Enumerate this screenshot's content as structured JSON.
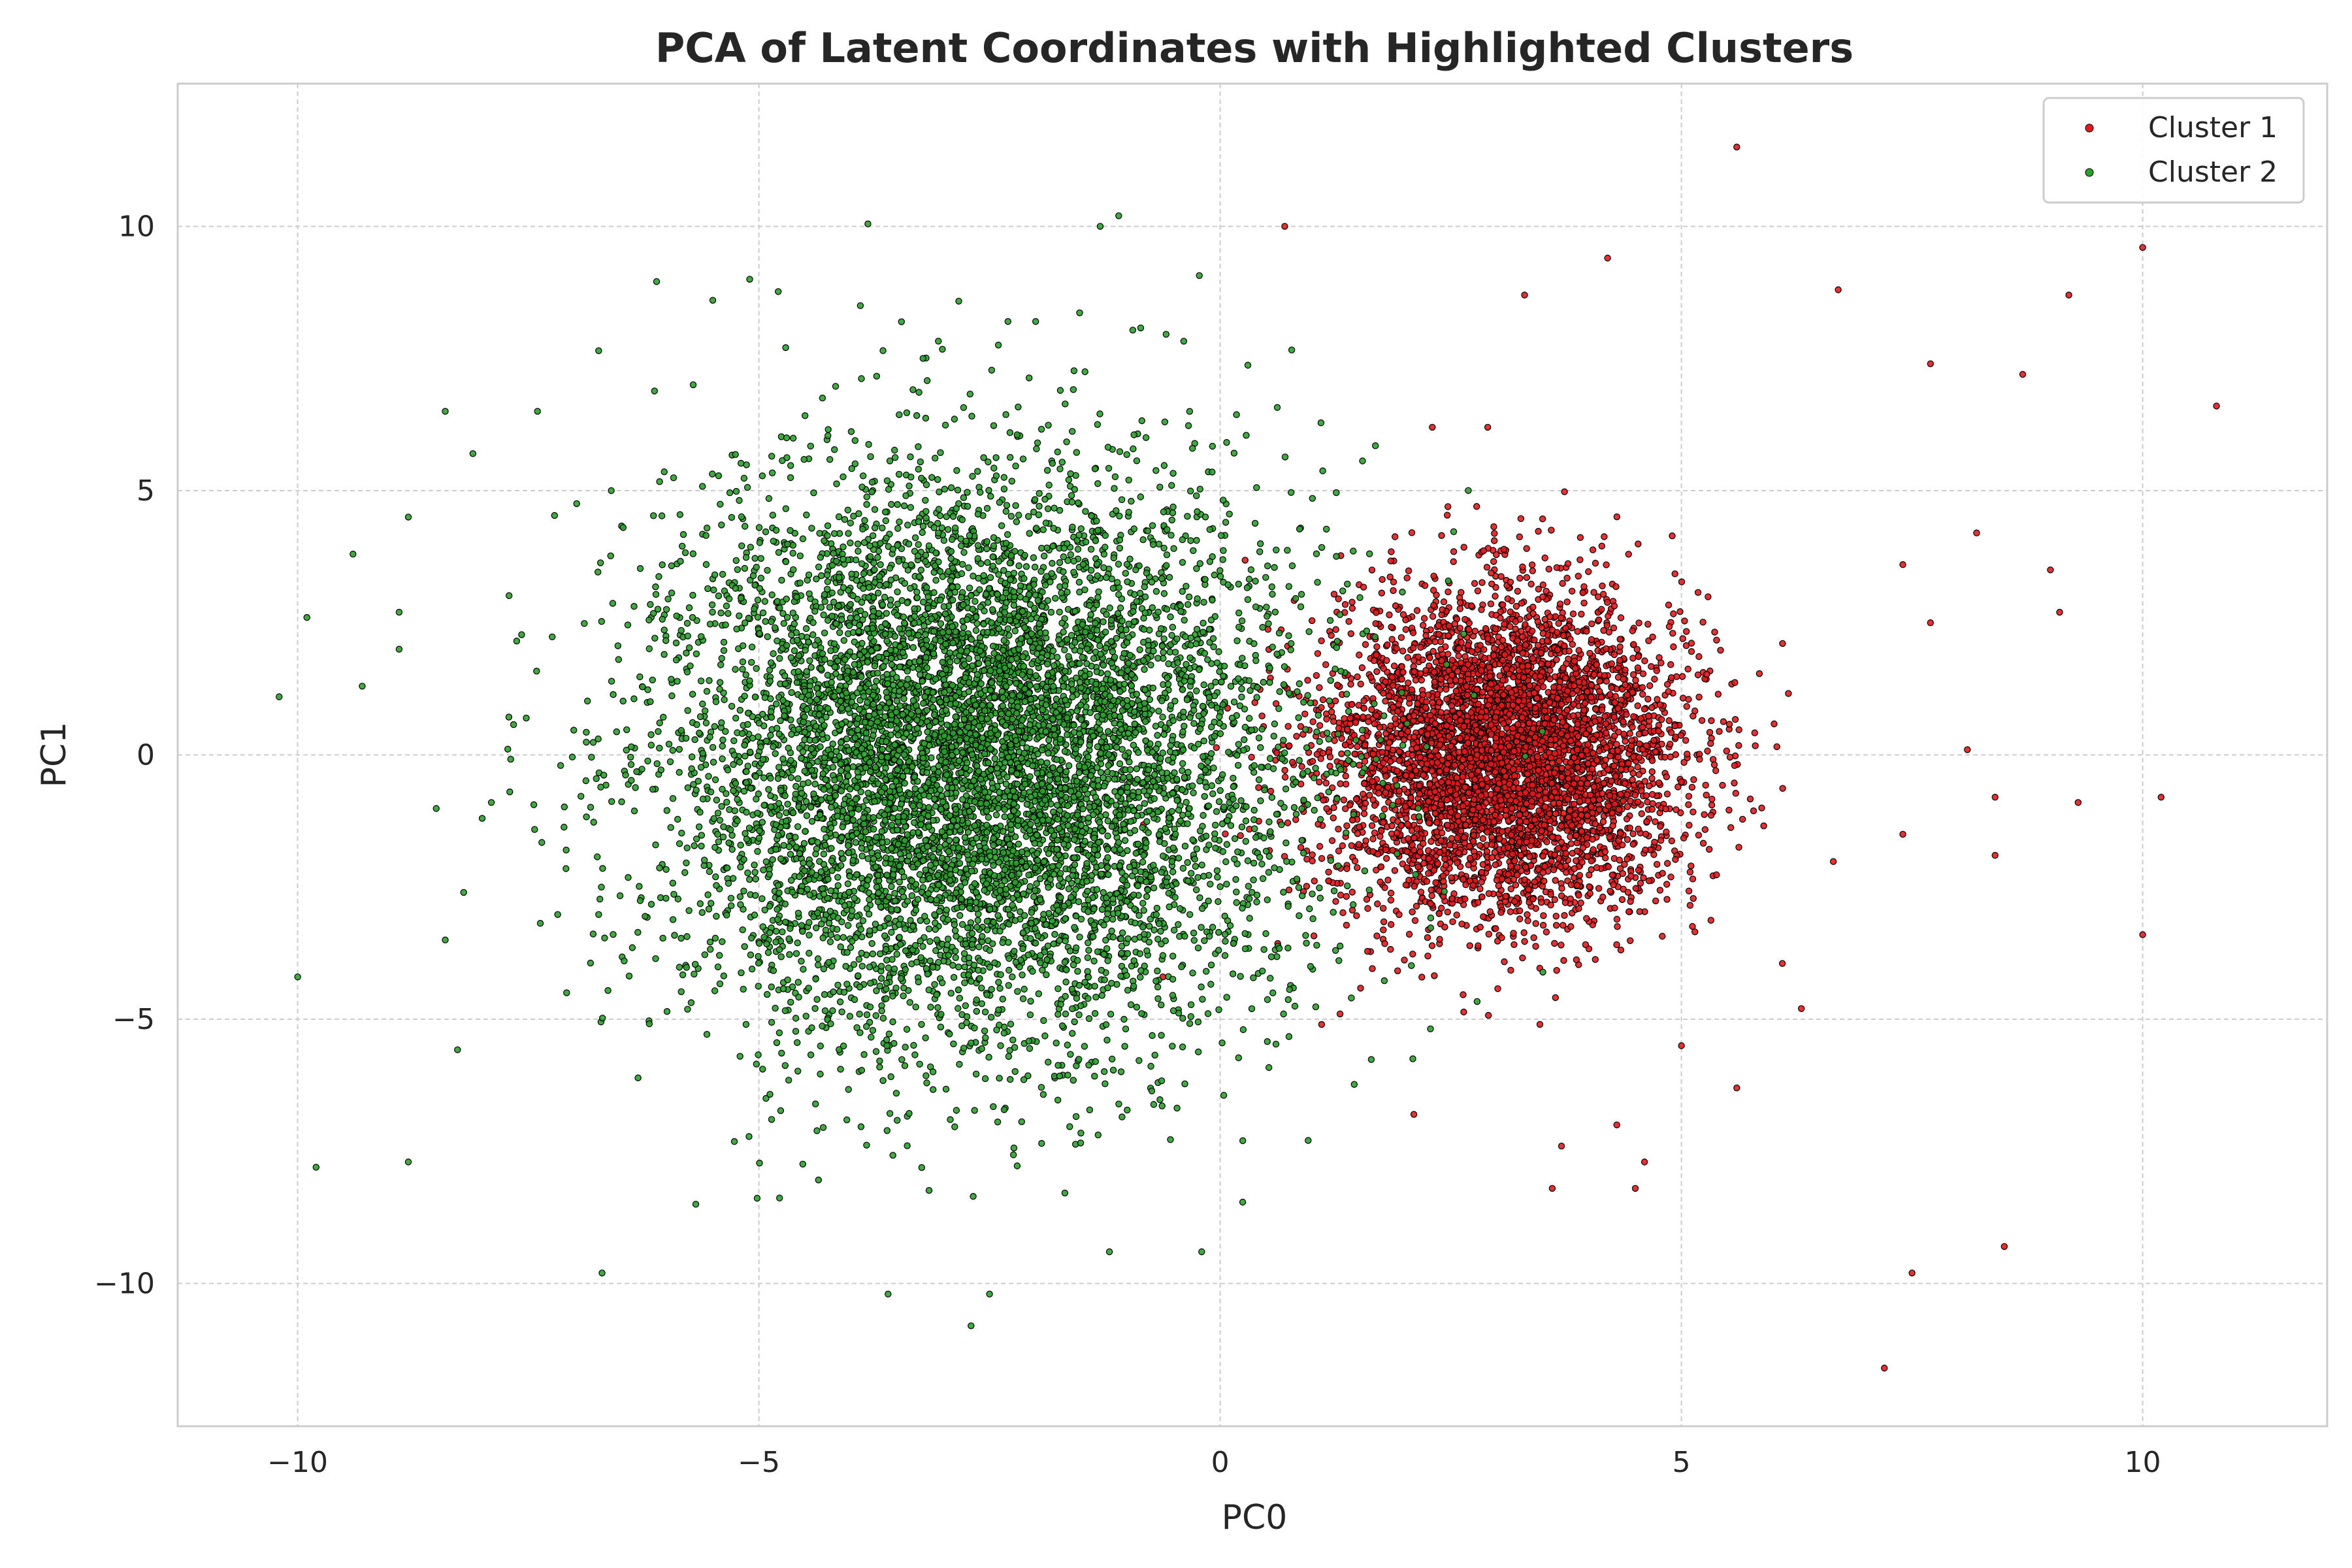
{
  "chart_data": {
    "type": "scatter",
    "title": "PCA of Latent Coordinates with Highlighted Clusters",
    "xlabel": "PC0",
    "ylabel": "PC1",
    "xlim": [
      -11.3,
      12.0
    ],
    "ylim": [
      -12.7,
      12.7
    ],
    "x_ticks": [
      -10,
      -5,
      0,
      5,
      10
    ],
    "x_tick_labels": [
      "−10",
      "−5",
      "0",
      "5",
      "10"
    ],
    "y_ticks": [
      -10,
      -5,
      0,
      5,
      10
    ],
    "y_tick_labels": [
      "−10",
      "−5",
      "0",
      "5",
      "10"
    ],
    "grid": true,
    "legend_position": "top-right",
    "series": [
      {
        "name": "Cluster 1",
        "color": "#e31a1c",
        "edge_color": "#000000",
        "center": [
          3.1,
          0.0
        ],
        "spread": [
          0.95,
          1.5
        ],
        "approx_count": 5000,
        "outliers": [
          [
            5.6,
            11.5
          ],
          [
            0.7,
            10.0
          ],
          [
            10.0,
            9.6
          ],
          [
            9.2,
            8.7
          ],
          [
            6.7,
            8.8
          ],
          [
            4.2,
            9.4
          ],
          [
            3.3,
            8.7
          ],
          [
            10.8,
            6.6
          ],
          [
            7.7,
            7.4
          ],
          [
            8.7,
            7.2
          ],
          [
            2.3,
            6.2
          ],
          [
            2.9,
            6.2
          ],
          [
            8.2,
            4.2
          ],
          [
            9.0,
            3.5
          ],
          [
            9.1,
            2.7
          ],
          [
            7.4,
            3.6
          ],
          [
            7.7,
            2.5
          ],
          [
            8.1,
            0.1
          ],
          [
            10.2,
            -0.8
          ],
          [
            9.3,
            -0.9
          ],
          [
            8.4,
            -0.8
          ],
          [
            8.4,
            -1.9
          ],
          [
            10.0,
            -3.4
          ],
          [
            7.4,
            -1.5
          ],
          [
            6.3,
            -4.8
          ],
          [
            5.6,
            -6.3
          ],
          [
            8.5,
            -9.3
          ],
          [
            7.5,
            -9.8
          ],
          [
            7.2,
            -11.6
          ],
          [
            3.6,
            -8.2
          ],
          [
            4.5,
            -8.2
          ],
          [
            4.6,
            -7.7
          ],
          [
            3.7,
            -7.4
          ],
          [
            1.1,
            -5.1
          ],
          [
            1.3,
            -4.9
          ],
          [
            0.7,
            1.3
          ],
          [
            0.6,
            -0.1
          ],
          [
            2.1,
            -6.8
          ],
          [
            5.0,
            -5.5
          ],
          [
            4.3,
            -7.0
          ]
        ]
      },
      {
        "name": "Cluster 2",
        "color": "#2ca02c",
        "edge_color": "#000000",
        "center": [
          -2.7,
          -0.1
        ],
        "spread": [
          1.65,
          2.6
        ],
        "approx_count": 8000,
        "outliers": [
          [
            -1.1,
            10.2
          ],
          [
            -1.3,
            10.0
          ],
          [
            -10.2,
            1.1
          ],
          [
            -9.9,
            2.6
          ],
          [
            -9.4,
            3.8
          ],
          [
            -9.3,
            1.3
          ],
          [
            -8.9,
            2.7
          ],
          [
            -8.9,
            2.0
          ],
          [
            -8.8,
            4.5
          ],
          [
            -8.4,
            6.5
          ],
          [
            -8.1,
            5.7
          ],
          [
            -7.4,
            6.5
          ],
          [
            -10.0,
            -4.2
          ],
          [
            -9.8,
            -7.8
          ],
          [
            -8.8,
            -7.7
          ],
          [
            -8.4,
            -3.5
          ],
          [
            -8.2,
            -2.6
          ],
          [
            -6.7,
            -9.8
          ],
          [
            -7.9,
            -0.9
          ],
          [
            -7.7,
            -0.7
          ],
          [
            -8.0,
            -1.2
          ],
          [
            -3.6,
            -10.2
          ],
          [
            -2.7,
            -10.8
          ],
          [
            -2.5,
            -10.2
          ],
          [
            -0.2,
            -9.4
          ],
          [
            -1.2,
            -9.4
          ],
          [
            -5.1,
            9.0
          ],
          [
            -5.5,
            8.6
          ],
          [
            -3.9,
            8.5
          ],
          [
            -2.3,
            8.2
          ],
          [
            -2.0,
            8.2
          ],
          [
            -0.6,
            6.3
          ],
          [
            -0.3,
            5.8
          ],
          [
            0.2,
            0.2
          ],
          [
            -0.1,
            1.3
          ],
          [
            -6.6,
            5.0
          ]
        ]
      }
    ]
  }
}
